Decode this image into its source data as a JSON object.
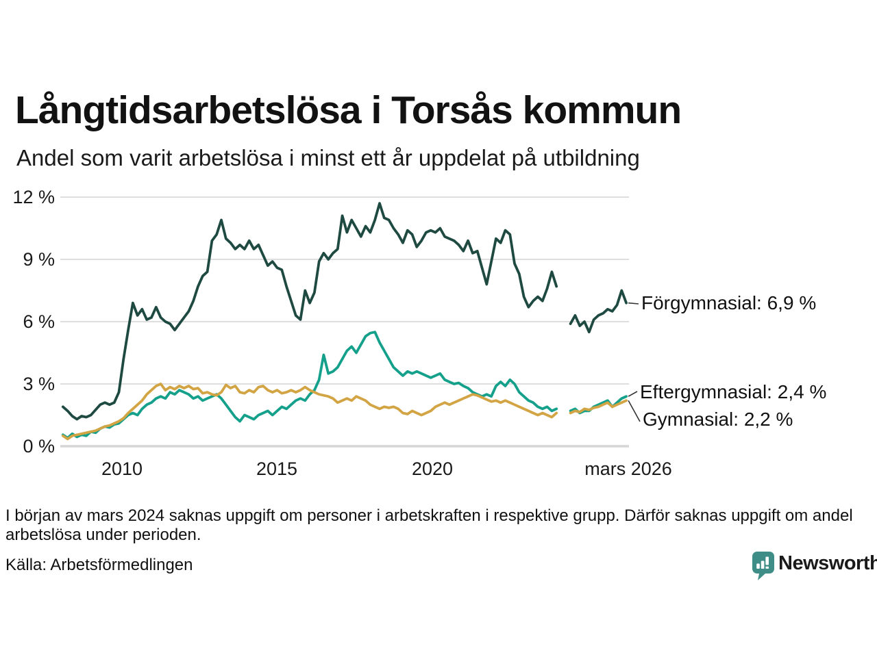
{
  "title": "Långtidsarbetslösa i Torsås kommun",
  "subtitle": "Andel som varit arbetslösa i minst ett år uppdelat på utbildning",
  "footnote": "I början av mars 2024 saknas uppgift om personer i arbetskraften i respektive grupp. Därför saknas uppgift om andel arbetslösa under perioden.",
  "source": "Källa: Arbetsförmedlingen",
  "branding": {
    "wordmark": "Newsworthy",
    "icon": "bar-chart-speech-bubble-icon",
    "color": "#3e8e87"
  },
  "colors": {
    "background": "#ffffff",
    "text": "#1a1a1a",
    "gridline": "#dedede",
    "zero_line": "#d6d6d6",
    "leader_line": "#333333"
  },
  "chart_data": {
    "type": "line",
    "title": "Långtidsarbetslösa i Torsås kommun",
    "subtitle": "Andel som varit arbetslösa i minst ett år uppdelat på utbildning",
    "xlabel": "",
    "ylabel": "",
    "grid": "horizontal-only",
    "legend_position": "right-end-labels",
    "x_start": 2008.1,
    "x_step": 0.15,
    "x_end_label_year": 2026.17,
    "data_gap": "mars 2024 (värden saknas)",
    "x_axis": {
      "ticks": [
        2010,
        2015,
        2020,
        2026.17
      ],
      "tick_labels": [
        "2010",
        "2015",
        "2020",
        "mars 2026"
      ]
    },
    "y_axis": {
      "ticks": [
        0,
        3,
        6,
        9,
        12
      ],
      "tick_labels": [
        "0 %",
        "3 %",
        "6 %",
        "9 %",
        "12 %"
      ],
      "range": [
        0,
        12.3
      ],
      "unit": "%"
    },
    "series": [
      {
        "name": "Förgymnasial",
        "label": "Förgymnasial: 6,9 %",
        "color": "#1f4a42",
        "values": [
          1.9,
          1.7,
          1.45,
          1.3,
          1.45,
          1.4,
          1.5,
          1.75,
          2.0,
          2.1,
          2.0,
          2.1,
          2.6,
          4.2,
          5.6,
          6.9,
          6.3,
          6.6,
          6.1,
          6.2,
          6.7,
          6.2,
          6.0,
          5.9,
          5.6,
          5.9,
          6.2,
          6.5,
          7.0,
          7.7,
          8.2,
          8.4,
          9.9,
          10.2,
          10.9,
          10.0,
          9.8,
          9.5,
          9.7,
          9.5,
          9.9,
          9.5,
          9.7,
          9.2,
          8.7,
          8.9,
          8.6,
          8.5,
          7.7,
          7.0,
          6.3,
          6.1,
          7.5,
          6.9,
          7.4,
          8.9,
          9.3,
          9.0,
          9.3,
          9.5,
          11.1,
          10.3,
          10.9,
          10.5,
          10.1,
          10.6,
          10.3,
          10.9,
          11.7,
          11.0,
          10.9,
          10.5,
          10.2,
          9.8,
          10.4,
          10.2,
          9.6,
          9.9,
          10.3,
          10.4,
          10.3,
          10.5,
          10.1,
          10.0,
          9.9,
          9.7,
          9.4,
          9.9,
          9.3,
          9.4,
          8.6,
          7.8,
          8.9,
          10.0,
          9.8,
          10.4,
          10.2,
          8.8,
          8.3,
          7.2,
          6.7,
          7.0,
          7.2,
          7.0,
          7.6,
          8.4,
          7.7,
          null,
          null,
          5.9,
          6.3,
          5.8,
          6.0,
          5.5,
          6.1,
          6.3,
          6.4,
          6.6,
          6.5,
          6.8,
          7.5,
          6.9
        ]
      },
      {
        "name": "Eftergymnasial",
        "label": "Eftergymnasial: 2,4 %",
        "color": "#14a08b",
        "values": [
          0.55,
          0.4,
          0.6,
          0.45,
          0.55,
          0.5,
          0.7,
          0.65,
          0.85,
          0.95,
          0.9,
          1.05,
          1.1,
          1.3,
          1.5,
          1.6,
          1.5,
          1.8,
          2.0,
          2.1,
          2.3,
          2.4,
          2.3,
          2.6,
          2.5,
          2.7,
          2.6,
          2.5,
          2.3,
          2.4,
          2.2,
          2.3,
          2.4,
          2.5,
          2.3,
          2.0,
          1.7,
          1.4,
          1.2,
          1.5,
          1.4,
          1.3,
          1.5,
          1.6,
          1.7,
          1.5,
          1.7,
          1.9,
          1.8,
          2.0,
          2.2,
          2.3,
          2.2,
          2.5,
          2.7,
          3.2,
          4.4,
          3.5,
          3.6,
          3.8,
          4.2,
          4.6,
          4.8,
          4.5,
          4.9,
          5.3,
          5.45,
          5.5,
          5.0,
          4.6,
          4.2,
          3.8,
          3.6,
          3.4,
          3.6,
          3.5,
          3.6,
          3.5,
          3.4,
          3.3,
          3.4,
          3.5,
          3.2,
          3.1,
          3.0,
          3.05,
          2.9,
          2.8,
          2.6,
          2.5,
          2.4,
          2.5,
          2.4,
          2.9,
          3.1,
          2.9,
          3.2,
          3.0,
          2.6,
          2.4,
          2.2,
          2.1,
          1.9,
          1.8,
          1.9,
          1.7,
          1.8,
          null,
          null,
          1.7,
          1.8,
          1.6,
          1.7,
          1.7,
          1.9,
          2.0,
          2.1,
          2.2,
          1.9,
          2.1,
          2.3,
          2.4
        ]
      },
      {
        "name": "Gymnasial",
        "label": "Gymnasial: 2,2 %",
        "color": "#d2a444",
        "values": [
          0.5,
          0.35,
          0.5,
          0.55,
          0.6,
          0.65,
          0.7,
          0.75,
          0.85,
          0.95,
          1.0,
          1.1,
          1.2,
          1.35,
          1.6,
          1.8,
          2.0,
          2.2,
          2.5,
          2.7,
          2.9,
          3.0,
          2.7,
          2.85,
          2.75,
          2.9,
          2.8,
          2.9,
          2.75,
          2.8,
          2.55,
          2.6,
          2.5,
          2.45,
          2.6,
          2.95,
          2.8,
          2.9,
          2.6,
          2.55,
          2.7,
          2.6,
          2.85,
          2.9,
          2.7,
          2.6,
          2.7,
          2.55,
          2.6,
          2.7,
          2.6,
          2.7,
          2.85,
          2.7,
          2.6,
          2.5,
          2.45,
          2.4,
          2.3,
          2.1,
          2.2,
          2.3,
          2.2,
          2.4,
          2.3,
          2.2,
          2.0,
          1.9,
          1.8,
          1.9,
          1.85,
          1.9,
          1.8,
          1.6,
          1.55,
          1.7,
          1.6,
          1.5,
          1.6,
          1.7,
          1.9,
          2.0,
          2.1,
          2.0,
          2.1,
          2.2,
          2.3,
          2.4,
          2.5,
          2.45,
          2.35,
          2.25,
          2.15,
          2.2,
          2.1,
          2.2,
          2.1,
          2.0,
          1.9,
          1.8,
          1.7,
          1.6,
          1.5,
          1.6,
          1.5,
          1.4,
          1.6,
          null,
          null,
          1.6,
          1.7,
          1.65,
          1.8,
          1.75,
          1.85,
          1.9,
          2.0,
          2.1,
          1.9,
          2.0,
          2.1,
          2.2
        ]
      }
    ]
  }
}
